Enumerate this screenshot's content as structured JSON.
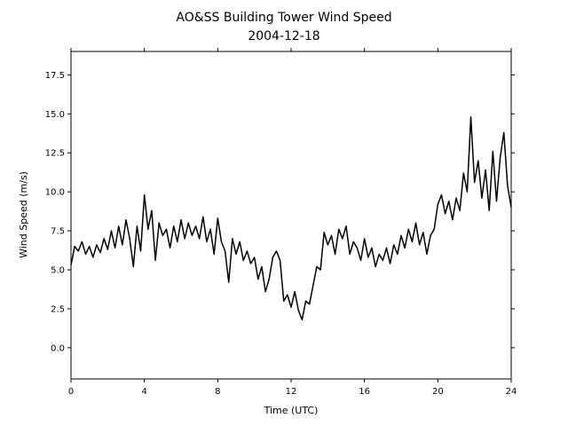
{
  "chart_data": {
    "type": "line",
    "title": "AO&SS Building Tower Wind Speed",
    "subtitle": "2004-12-18",
    "xlabel": "Time (UTC)",
    "ylabel": "Wind Speed (m/s)",
    "x": [
      0,
      0.2,
      0.4,
      0.6,
      0.8,
      1,
      1.2,
      1.4,
      1.6,
      1.8,
      2,
      2.2,
      2.4,
      2.6,
      2.8,
      3,
      3.2,
      3.4,
      3.6,
      3.8,
      4,
      4.2,
      4.4,
      4.6,
      4.8,
      5,
      5.2,
      5.4,
      5.6,
      5.8,
      6,
      6.2,
      6.4,
      6.6,
      6.8,
      7,
      7.2,
      7.4,
      7.6,
      7.8,
      8,
      8.2,
      8.4,
      8.6,
      8.8,
      9,
      9.2,
      9.4,
      9.6,
      9.8,
      10,
      10.2,
      10.4,
      10.6,
      10.8,
      11,
      11.2,
      11.4,
      11.6,
      11.8,
      12,
      12.2,
      12.4,
      12.6,
      12.8,
      13,
      13.2,
      13.4,
      13.6,
      13.8,
      14,
      14.2,
      14.4,
      14.6,
      14.8,
      15,
      15.2,
      15.4,
      15.6,
      15.8,
      16,
      16.2,
      16.4,
      16.6,
      16.8,
      17,
      17.2,
      17.4,
      17.6,
      17.8,
      18,
      18.2,
      18.4,
      18.6,
      18.8,
      19,
      19.2,
      19.4,
      19.6,
      19.8,
      20,
      20.2,
      20.4,
      20.6,
      20.8,
      21,
      21.2,
      21.4,
      21.6,
      21.8,
      22,
      22.2,
      22.4,
      22.6,
      22.8,
      23,
      23.2,
      23.4,
      23.6,
      23.8,
      24
    ],
    "series": [
      {
        "name": "Wind Speed",
        "color": "#000000",
        "values": [
          5.3,
          6.5,
          6.2,
          6.8,
          6.0,
          6.5,
          5.8,
          6.6,
          6.1,
          7.0,
          6.3,
          7.5,
          6.4,
          7.8,
          6.6,
          8.2,
          7.0,
          5.2,
          7.8,
          6.2,
          9.8,
          7.6,
          8.8,
          5.6,
          8.0,
          7.2,
          7.6,
          6.4,
          7.8,
          6.8,
          8.2,
          7.0,
          8.0,
          7.2,
          7.8,
          7.0,
          8.4,
          6.8,
          7.6,
          6.0,
          8.3,
          6.8,
          6.2,
          4.2,
          7.0,
          6.0,
          6.8,
          5.6,
          6.2,
          5.4,
          5.8,
          4.4,
          5.2,
          3.6,
          4.4,
          5.8,
          6.2,
          5.6,
          3.0,
          3.4,
          2.6,
          3.6,
          2.4,
          1.8,
          3.0,
          2.8,
          4.0,
          5.2,
          5.0,
          7.4,
          6.6,
          7.2,
          6.0,
          7.6,
          7.0,
          7.8,
          6.0,
          6.8,
          6.4,
          5.6,
          7.0,
          5.8,
          6.4,
          5.2,
          6.0,
          5.6,
          6.4,
          5.4,
          6.6,
          6.0,
          7.2,
          6.4,
          7.6,
          6.8,
          8.0,
          6.6,
          7.4,
          6.0,
          7.2,
          7.6,
          9.2,
          9.8,
          8.6,
          9.4,
          8.2,
          9.6,
          8.8,
          11.2,
          10.0,
          14.8,
          10.6,
          12.0,
          9.6,
          11.4,
          8.8,
          12.6,
          9.4,
          12.2,
          13.8,
          10.4,
          9.0
        ]
      }
    ],
    "xlim": [
      0,
      24
    ],
    "xticks": [
      0,
      4,
      8,
      12,
      16,
      20,
      24
    ],
    "ylim": [
      -2,
      19
    ],
    "yticks": [
      {
        "value": 0,
        "label": "0.0"
      },
      2.5,
      {
        "value": 5,
        "label": "5.0"
      },
      7.5,
      {
        "value": 10,
        "label": "10.0"
      },
      12.5,
      {
        "value": 15,
        "label": "15.0"
      },
      17.5
    ],
    "grid": false
  }
}
